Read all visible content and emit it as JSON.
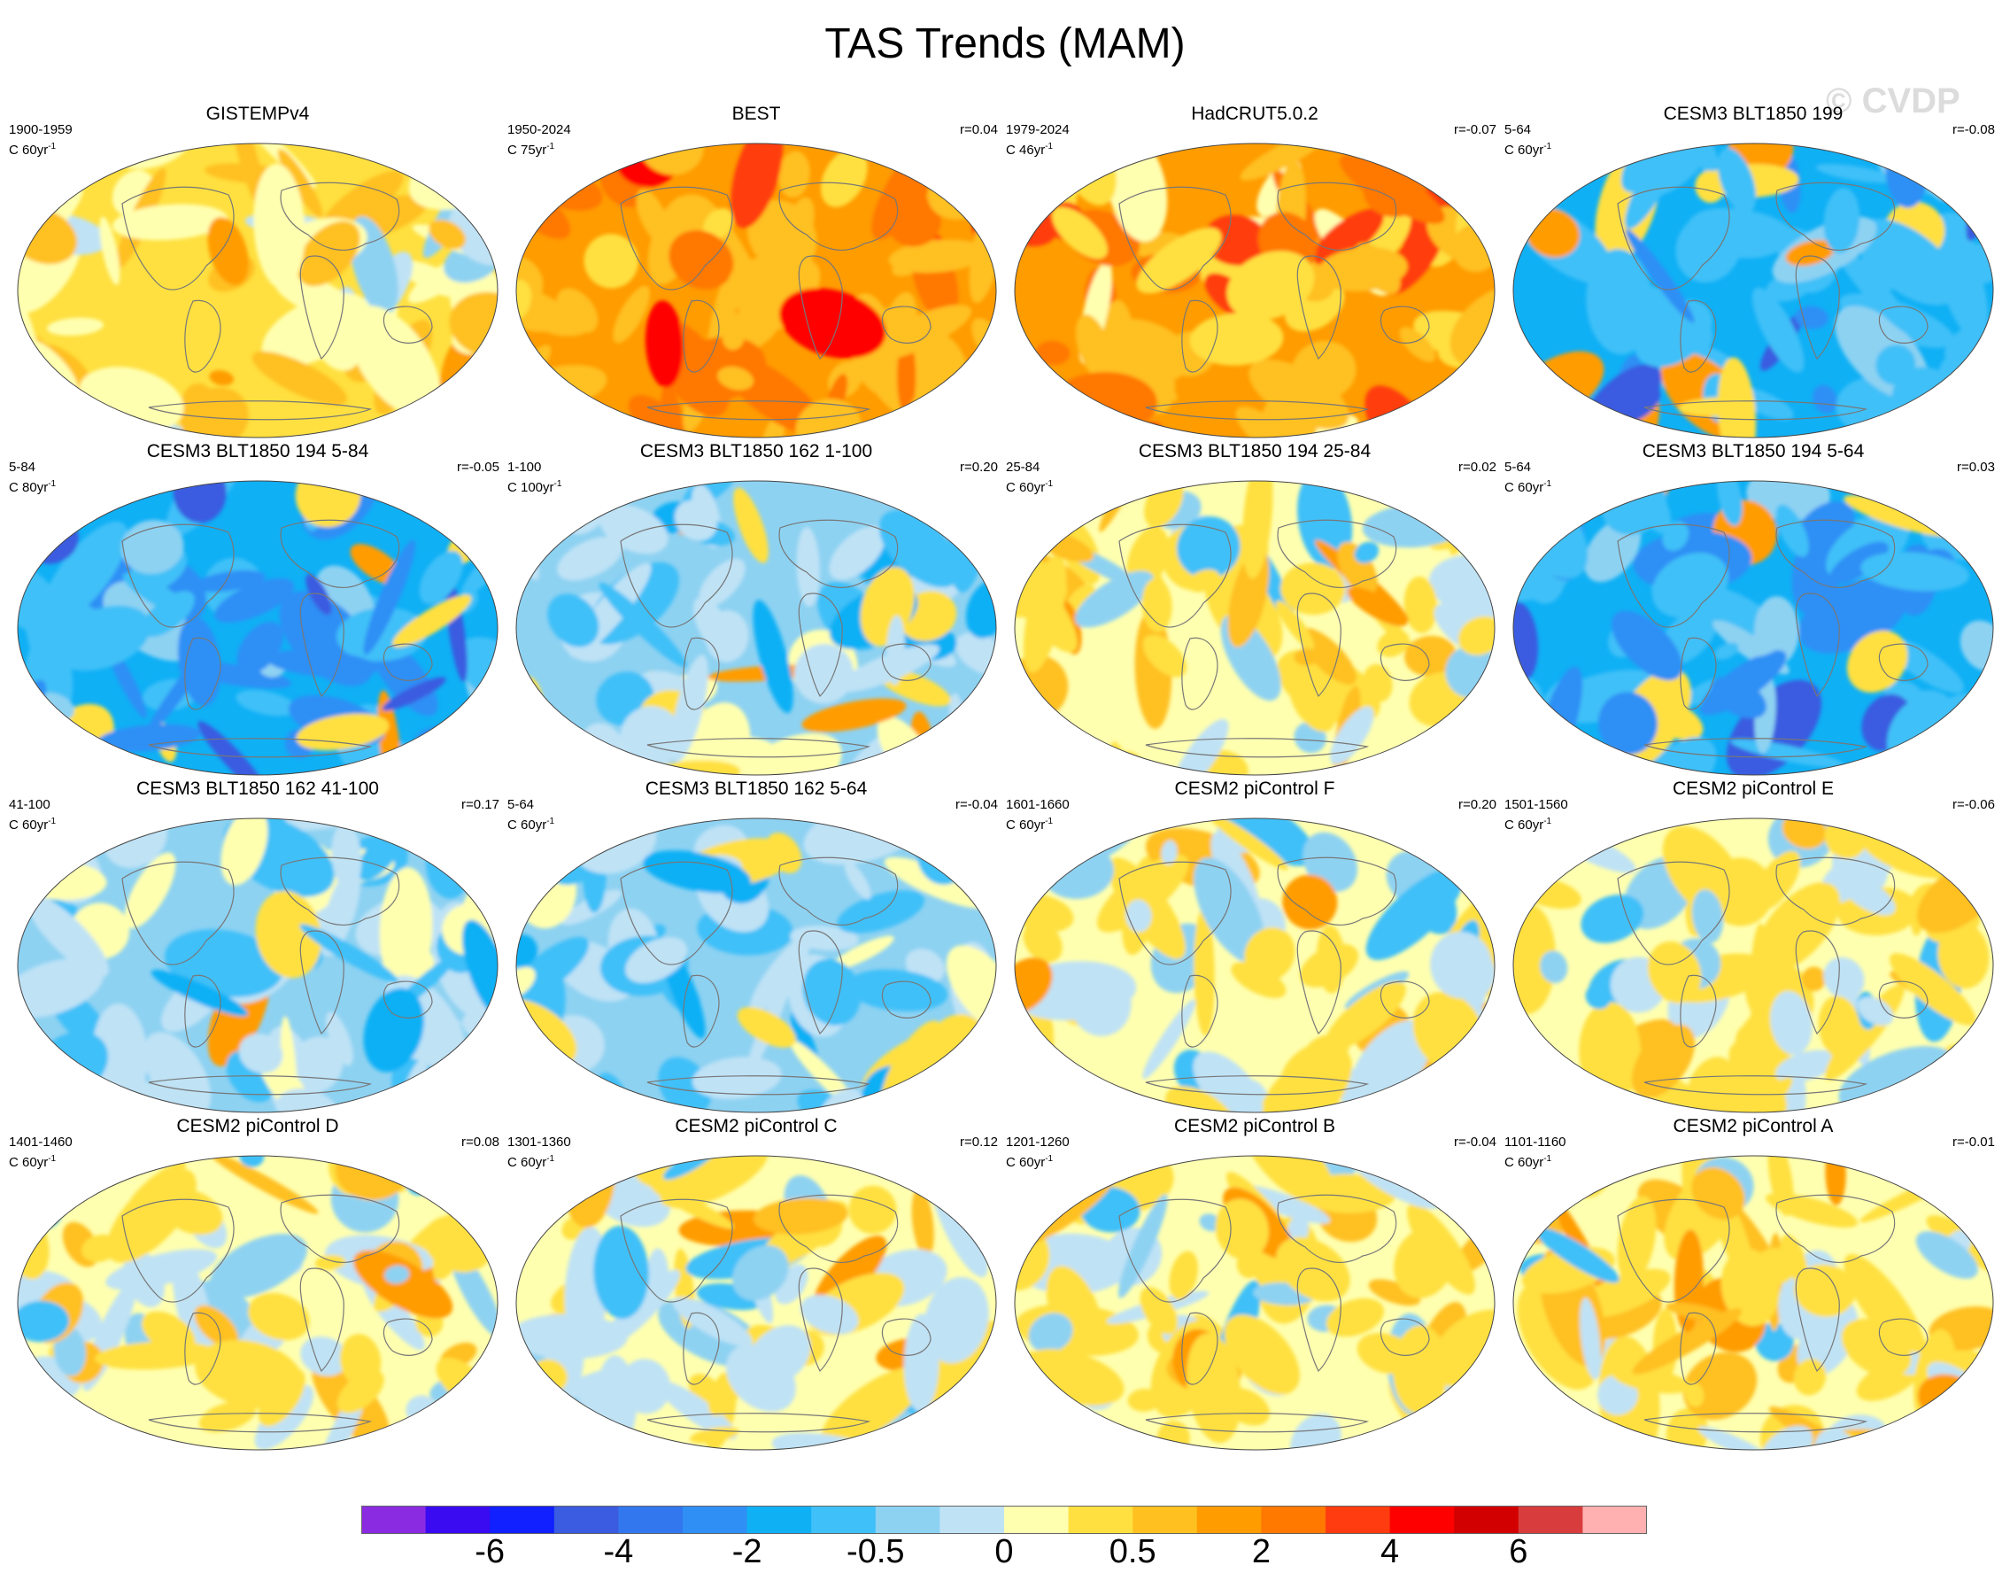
{
  "title": "TAS Trends (MAM)",
  "watermark": "© CVDP",
  "units_suffix": "yr",
  "units_exponent": "-1",
  "panels": [
    {
      "name": "GISTEMPv4",
      "period": "1900-1959",
      "units": "C 60",
      "r": "",
      "pattern": "obs1"
    },
    {
      "name": "BEST",
      "period": "1950-2024",
      "units": "C 75",
      "r": "r=0.04",
      "pattern": "hot"
    },
    {
      "name": "HadCRUT5.0.2",
      "period": "1979-2024",
      "units": "C 46",
      "r": "r=-0.07",
      "pattern": "hot2"
    },
    {
      "name": "CESM3 BLT1850 199",
      "period": "5-64",
      "units": "C 60",
      "r": "r=-0.08",
      "pattern": "cold"
    },
    {
      "name": "CESM3 BLT1850 194 5-84",
      "period": "5-84",
      "units": "C 80",
      "r": "r=-0.05",
      "pattern": "cold"
    },
    {
      "name": "CESM3 BLT1850 162 1-100",
      "period": "1-100",
      "units": "C 100",
      "r": "r=0.20",
      "pattern": "mixcold"
    },
    {
      "name": "CESM3 BLT1850 194 25-84",
      "period": "25-84",
      "units": "C 60",
      "r": "r=0.02",
      "pattern": "mixwarm"
    },
    {
      "name": "CESM3 BLT1850 194 5-64",
      "period": "5-64",
      "units": "C 60",
      "r": "r=0.03",
      "pattern": "cold"
    },
    {
      "name": "CESM3 BLT1850 162 41-100",
      "period": "41-100",
      "units": "C 60",
      "r": "r=0.17",
      "pattern": "mixcold"
    },
    {
      "name": "CESM3 BLT1850 162 5-64",
      "period": "5-64",
      "units": "C 60",
      "r": "r=-0.04",
      "pattern": "mixcold"
    },
    {
      "name": "CESM2 piControl F",
      "period": "1601-1660",
      "units": "C 60",
      "r": "r=0.20",
      "pattern": "mixwarm"
    },
    {
      "name": "CESM2 piControl E",
      "period": "1501-1560",
      "units": "C 60",
      "r": "r=-0.06",
      "pattern": "mixwarm"
    },
    {
      "name": "CESM2 piControl D",
      "period": "1401-1460",
      "units": "C 60",
      "r": "r=0.08",
      "pattern": "mixwarm"
    },
    {
      "name": "CESM2 piControl C",
      "period": "1301-1360",
      "units": "C 60",
      "r": "r=0.12",
      "pattern": "mixwarm"
    },
    {
      "name": "CESM2 piControl B",
      "period": "1201-1260",
      "units": "C 60",
      "r": "r=-0.04",
      "pattern": "mixwarm"
    },
    {
      "name": "CESM2 piControl A",
      "period": "1101-1160",
      "units": "C 60",
      "r": "r=-0.01",
      "pattern": "mixwarm"
    }
  ],
  "colorbar": {
    "colors": [
      "#8a2be2",
      "#3a0af0",
      "#1020ff",
      "#3b5be0",
      "#3277ee",
      "#2f8ff5",
      "#10b0f5",
      "#3fc0f8",
      "#8ed2f2",
      "#bfe2f5",
      "#ffffb0",
      "#ffe040",
      "#ffc020",
      "#ff9c00",
      "#ff7800",
      "#ff3c10",
      "#ff0000",
      "#d20000",
      "#d83c3c",
      "#ffb0b0"
    ],
    "labels": [
      {
        "text": "-6",
        "index": 2
      },
      {
        "text": "-4",
        "index": 4
      },
      {
        "text": "-2",
        "index": 6
      },
      {
        "text": "-0.5",
        "index": 8
      },
      {
        "text": "0",
        "index": 10
      },
      {
        "text": "0.5",
        "index": 12
      },
      {
        "text": "2",
        "index": 14
      },
      {
        "text": "4",
        "index": 16
      },
      {
        "text": "6",
        "index": 18
      }
    ]
  }
}
